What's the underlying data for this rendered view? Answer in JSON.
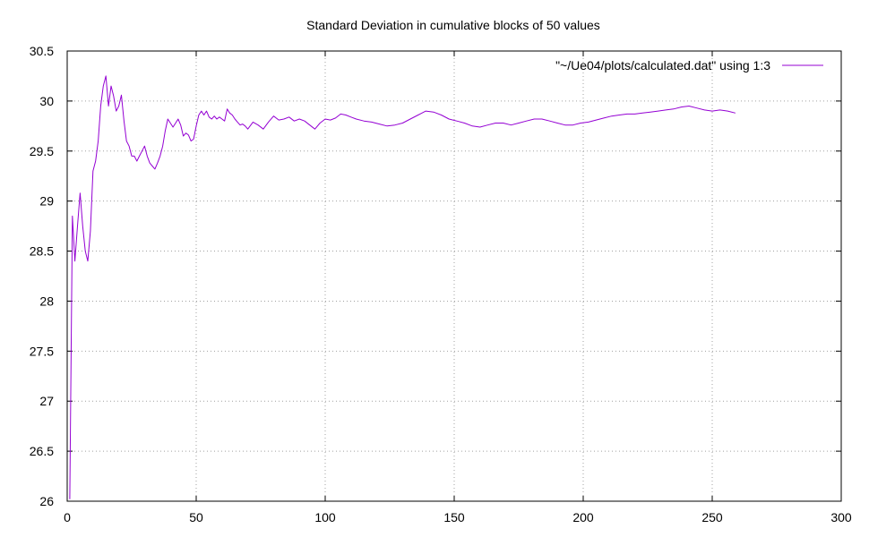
{
  "chart_data": {
    "type": "line",
    "title": "Standard Deviation in cumulative blocks of 50 values",
    "xlabel": "",
    "ylabel": "",
    "xlim": [
      0,
      300
    ],
    "ylim": [
      26,
      30.5
    ],
    "x_ticks": [
      "0",
      "50",
      "100",
      "150",
      "200",
      "250",
      "300"
    ],
    "y_ticks": [
      "26",
      "26.5",
      "27",
      "27.5",
      "28",
      "28.5",
      "29",
      "29.5",
      "30",
      "30.5"
    ],
    "grid": true,
    "legend_position": "top-right",
    "series_color": "#9400d3",
    "series": [
      {
        "name": "\"~/Ue04/plots/calculated.dat\" using 1:3",
        "x": [
          1,
          2,
          3,
          4,
          5,
          6,
          7,
          8,
          9,
          10,
          11,
          12,
          13,
          14,
          15,
          16,
          17,
          18,
          19,
          20,
          21,
          22,
          23,
          24,
          25,
          26,
          27,
          28,
          29,
          30,
          31,
          32,
          33,
          34,
          35,
          36,
          37,
          38,
          39,
          40,
          41,
          42,
          43,
          44,
          45,
          46,
          47,
          48,
          49,
          50,
          51,
          52,
          53,
          54,
          55,
          56,
          57,
          58,
          59,
          60,
          61,
          62,
          63,
          64,
          65,
          66,
          67,
          68,
          69,
          70,
          72,
          74,
          76,
          78,
          80,
          82,
          84,
          86,
          88,
          90,
          92,
          94,
          96,
          98,
          100,
          102,
          104,
          106,
          108,
          110,
          112,
          115,
          118,
          121,
          124,
          127,
          130,
          133,
          136,
          139,
          142,
          145,
          148,
          151,
          154,
          157,
          160,
          163,
          166,
          169,
          172,
          175,
          178,
          181,
          184,
          187,
          190,
          193,
          196,
          199,
          202,
          205,
          208,
          211,
          214,
          217,
          220,
          223,
          226,
          229,
          232,
          235,
          238,
          241,
          244,
          247,
          250,
          253,
          256,
          259
        ],
        "y": [
          26.02,
          28.85,
          28.4,
          28.75,
          29.08,
          28.75,
          28.5,
          28.4,
          28.7,
          29.3,
          29.4,
          29.6,
          29.95,
          30.15,
          30.25,
          29.95,
          30.15,
          30.05,
          29.9,
          29.95,
          30.06,
          29.8,
          29.6,
          29.55,
          29.45,
          29.45,
          29.4,
          29.45,
          29.5,
          29.55,
          29.45,
          29.38,
          29.35,
          29.32,
          29.38,
          29.45,
          29.55,
          29.7,
          29.82,
          29.78,
          29.74,
          29.78,
          29.82,
          29.76,
          29.65,
          29.68,
          29.66,
          29.6,
          29.62,
          29.75,
          29.86,
          29.9,
          29.86,
          29.9,
          29.84,
          29.82,
          29.85,
          29.82,
          29.84,
          29.82,
          29.8,
          29.92,
          29.88,
          29.86,
          29.82,
          29.79,
          29.76,
          29.77,
          29.75,
          29.72,
          29.79,
          29.76,
          29.72,
          29.79,
          29.85,
          29.81,
          29.82,
          29.84,
          29.8,
          29.82,
          29.8,
          29.76,
          29.72,
          29.78,
          29.82,
          29.81,
          29.83,
          29.87,
          29.86,
          29.84,
          29.82,
          29.8,
          29.79,
          29.77,
          29.75,
          29.76,
          29.78,
          29.82,
          29.86,
          29.9,
          29.89,
          29.86,
          29.82,
          29.8,
          29.78,
          29.75,
          29.74,
          29.76,
          29.78,
          29.78,
          29.76,
          29.78,
          29.8,
          29.82,
          29.82,
          29.8,
          29.78,
          29.76,
          29.76,
          29.78,
          29.79,
          29.81,
          29.83,
          29.85,
          29.86,
          29.87,
          29.87,
          29.88,
          29.89,
          29.9,
          29.91,
          29.92,
          29.94,
          29.95,
          29.93,
          29.91,
          29.9,
          29.91,
          29.9,
          29.88
        ]
      }
    ]
  }
}
